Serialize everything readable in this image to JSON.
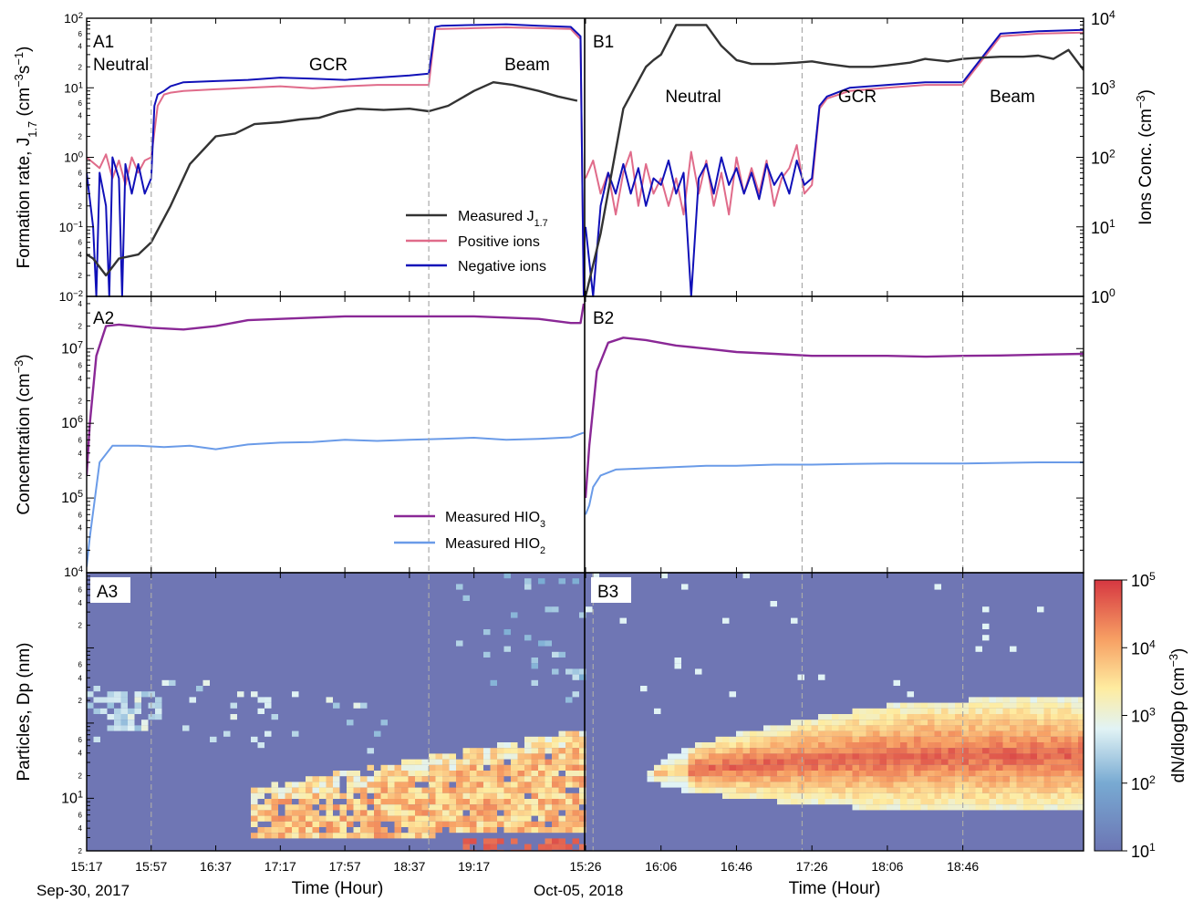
{
  "chart_data": {
    "type": "multi-panel",
    "experiments": [
      {
        "name": "A",
        "date_label": "Sep-30, 2017",
        "time_ticks": [
          "15:17",
          "15:57",
          "16:37",
          "17:17",
          "17:57",
          "18:37",
          "19:17"
        ],
        "stage_labels": [
          "Neutral",
          "GCR",
          "Beam"
        ]
      },
      {
        "name": "B",
        "date_label": "Oct-05, 2018",
        "time_ticks": [
          "15:26",
          "16:06",
          "16:46",
          "17:26",
          "18:06",
          "18:46"
        ],
        "stage_labels": [
          "Neutral",
          "GCR",
          "Beam"
        ]
      }
    ],
    "xlabel": "Time (Hour)",
    "panels": {
      "row1": {
        "ylabel": "Formation  rate, J",
        "ylabel_sub": "1.7",
        "ylabel_unit": " (cm",
        "ylabel_exp1": "−3",
        "ylabel_mid": "s",
        "ylabel_exp2": "−1",
        "ylabel_end": ")",
        "y2label": "Ions Conc. (cm",
        "y2label_exp": "−3",
        "y2label_end": ")",
        "ylim": [
          0.01,
          100
        ],
        "y2lim": [
          1,
          10000
        ],
        "scale": "log",
        "labels": [
          "A1",
          "B1"
        ],
        "legend": [
          {
            "name": "Measured J",
            "sub": "1.7",
            "color": "#333333"
          },
          {
            "name": "Positive ions",
            "color": "#e06b8a"
          },
          {
            "name": "Negative ions",
            "color": "#1010b8"
          }
        ],
        "series_A": {
          "J": {
            "t": [
              0,
              0.1,
              0.3,
              0.5,
              0.8,
              1.0,
              1.3,
              1.6,
              2.0,
              2.3,
              2.6,
              3.0,
              3.3,
              3.6,
              3.9,
              4.2,
              4.6,
              5.0,
              5.3,
              5.6,
              6.0,
              6.3,
              6.6,
              7.0,
              7.3,
              7.6
            ],
            "v": [
              0.04,
              0.035,
              0.02,
              0.035,
              0.04,
              0.06,
              0.2,
              0.8,
              2.0,
              2.2,
              3.0,
              3.2,
              3.5,
              3.7,
              4.5,
              5.0,
              4.8,
              5.0,
              4.6,
              5.5,
              9.0,
              12.0,
              11.0,
              9.0,
              7.5,
              6.5
            ]
          },
          "pos": {
            "t": [
              0,
              0.2,
              0.3,
              0.4,
              0.5,
              0.6,
              0.7,
              0.8,
              0.9,
              1.0,
              1.1,
              1.2,
              1.3,
              1.5,
              2.0,
              2.5,
              3.0,
              3.5,
              4.0,
              4.5,
              5.0,
              5.3,
              5.4,
              5.5,
              6.0,
              6.5,
              7.0,
              7.5,
              7.65,
              7.7
            ],
            "v": [
              1.0,
              0.7,
              1.1,
              0.5,
              0.9,
              0.4,
              1.0,
              0.6,
              0.9,
              1.0,
              5.5,
              8.0,
              8.5,
              9.0,
              9.5,
              10.0,
              10.5,
              9.8,
              10.5,
              11.0,
              11.0,
              11.0,
              70,
              70,
              72,
              74,
              72,
              70,
              50,
              0.01
            ]
          },
          "neg": {
            "t": [
              0,
              0.1,
              0.15,
              0.2,
              0.3,
              0.35,
              0.4,
              0.5,
              0.55,
              0.6,
              0.7,
              0.8,
              0.9,
              1.0,
              1.05,
              1.1,
              1.2,
              1.3,
              1.5,
              2.0,
              2.5,
              3.0,
              3.5,
              4.0,
              4.5,
              5.0,
              5.3,
              5.4,
              5.5,
              6.0,
              6.5,
              7.0,
              7.5,
              7.65,
              7.7
            ],
            "v": [
              0.6,
              0.1,
              0.01,
              0.6,
              0.2,
              0.01,
              1.0,
              0.5,
              0.01,
              0.8,
              0.3,
              0.8,
              0.3,
              0.5,
              5.5,
              8.0,
              9.0,
              10.5,
              12.0,
              12.5,
              13.0,
              14.0,
              13.5,
              13.0,
              14.0,
              15.0,
              16.0,
              75,
              78,
              80,
              82,
              78,
              75,
              55,
              0.01
            ]
          }
        },
        "series_B": {
          "ions": {
            "t": [
              0,
              0.2,
              0.5,
              0.8,
              0.9,
              1.0,
              1.2,
              1.4,
              1.6,
              1.8,
              2.0,
              2.2,
              2.5,
              2.8,
              3.0,
              3.2,
              3.5,
              3.8,
              4.0,
              4.3,
              4.5,
              4.8,
              5.0,
              5.2,
              5.5,
              5.8,
              6.0,
              6.2,
              6.4,
              6.6
            ],
            "v": [
              0.5,
              8,
              500,
              2000,
              2500,
              3000,
              8000,
              8000,
              8000,
              4000,
              2500,
              2200,
              2200,
              2300,
              2400,
              2200,
              2000,
              2000,
              2100,
              2300,
              2600,
              2400,
              2600,
              2700,
              2800,
              2800,
              2900,
              2600,
              3500,
              1800
            ]
          },
          "pos": {
            "t": [
              0,
              0.1,
              0.2,
              0.3,
              0.4,
              0.5,
              0.6,
              0.7,
              0.8,
              0.9,
              1.0,
              1.1,
              1.2,
              1.3,
              1.4,
              1.5,
              1.6,
              1.7,
              1.8,
              1.9,
              2.0,
              2.1,
              2.2,
              2.3,
              2.4,
              2.5,
              2.6,
              2.7,
              2.8,
              2.9,
              3.0,
              3.1,
              3.2,
              3.5,
              4.0,
              4.5,
              5.0,
              5.5,
              6.0,
              6.6
            ],
            "v": [
              0.5,
              0.9,
              0.3,
              0.6,
              0.15,
              0.6,
              1.2,
              0.2,
              0.8,
              0.3,
              0.5,
              0.2,
              0.5,
              0.15,
              1.2,
              0.3,
              0.9,
              0.2,
              0.6,
              0.15,
              1.0,
              0.3,
              0.7,
              0.3,
              0.9,
              0.2,
              0.5,
              0.7,
              1.5,
              0.3,
              0.4,
              5.0,
              7.0,
              9.0,
              10.0,
              11.0,
              11.0,
              55,
              60,
              62
            ]
          },
          "neg": {
            "t": [
              0,
              0.1,
              0.2,
              0.3,
              0.4,
              0.5,
              0.6,
              0.7,
              0.8,
              0.9,
              1.0,
              1.1,
              1.2,
              1.3,
              1.4,
              1.5,
              1.6,
              1.7,
              1.8,
              1.9,
              2.0,
              2.1,
              2.2,
              2.3,
              2.4,
              2.5,
              2.6,
              2.7,
              2.8,
              2.9,
              3.0,
              3.1,
              3.2,
              3.5,
              4.0,
              4.5,
              5.0,
              5.5,
              6.0,
              6.6
            ],
            "v": [
              0.1,
              0.01,
              0.2,
              0.6,
              0.3,
              0.8,
              0.3,
              0.7,
              0.2,
              0.5,
              0.4,
              0.9,
              0.3,
              0.6,
              0.01,
              0.5,
              0.8,
              0.3,
              1.0,
              0.4,
              0.7,
              0.3,
              0.6,
              0.25,
              0.8,
              0.4,
              0.6,
              0.3,
              0.9,
              0.4,
              0.5,
              5.5,
              7.5,
              10.0,
              11.0,
              12.0,
              12.0,
              60,
              65,
              68
            ]
          }
        }
      },
      "row2": {
        "ylabel": "Concentration (cm",
        "ylabel_exp": "−3",
        "ylabel_end": ")",
        "ylim": [
          100000,
          5000000
        ],
        "scale": "log",
        "labels": [
          "A2",
          "B2"
        ],
        "legend": [
          {
            "name": "Measured HIO",
            "sub": "3",
            "color": "#8a2896"
          },
          {
            "name": "Measured HIO",
            "sub": "2",
            "color": "#6a9be8"
          }
        ],
        "series_A": {
          "HIO3": {
            "t": [
              0,
              0.05,
              0.15,
              0.3,
              0.5,
              1.0,
              1.5,
              2.0,
              2.5,
              3.0,
              3.5,
              4.0,
              4.5,
              5.0,
              5.5,
              6.0,
              6.5,
              7.0,
              7.5,
              7.65,
              7.7
            ],
            "v": [
              200000,
              1000000,
              8000000,
              20000000,
              21000000,
              19000000,
              18000000,
              20000000,
              24000000,
              25000000,
              26000000,
              27000000,
              27000000,
              27000000,
              27000000,
              27000000,
              26000000,
              25000000,
              22000000,
              22000000,
              40000000
            ]
          },
          "HIO2": {
            "t": [
              0,
              0.05,
              0.2,
              0.4,
              0.8,
              1.2,
              1.6,
              2.0,
              2.5,
              3.0,
              3.5,
              4.0,
              4.5,
              5.0,
              5.5,
              6.0,
              6.5,
              7.0,
              7.5,
              7.7
            ],
            "v": [
              12000,
              30000,
              300000,
              500000,
              500000,
              480000,
              500000,
              450000,
              520000,
              550000,
              560000,
              600000,
              580000,
              600000,
              620000,
              640000,
              600000,
              620000,
              650000,
              750000
            ]
          }
        },
        "series_B": {
          "HIO3": {
            "t": [
              0,
              0.05,
              0.15,
              0.3,
              0.5,
              0.8,
              1.2,
              1.6,
              2.0,
              2.5,
              3.0,
              3.5,
              4.0,
              4.5,
              5.0,
              5.5,
              6.0,
              6.6
            ],
            "v": [
              100000,
              500000,
              5000000,
              12000000,
              14000000,
              13000000,
              11000000,
              10000000,
              9000000,
              8500000,
              8000000,
              8000000,
              8000000,
              7800000,
              8000000,
              8100000,
              8300000,
              8500000
            ]
          },
          "HIO2": {
            "t": [
              0,
              0.05,
              0.1,
              0.2,
              0.4,
              0.8,
              1.2,
              1.6,
              2.0,
              2.5,
              3.0,
              3.5,
              4.0,
              4.5,
              5.0,
              5.5,
              6.0,
              6.6
            ],
            "v": [
              60000,
              80000,
              140000,
              200000,
              240000,
              250000,
              260000,
              270000,
              270000,
              280000,
              280000,
              285000,
              290000,
              290000,
              290000,
              295000,
              300000,
              300000
            ]
          }
        }
      },
      "row3": {
        "ylabel": "Particles, Dp (nm)",
        "ylim": [
          2,
          100
        ],
        "scale": "log",
        "labels": [
          "A3",
          "B3"
        ],
        "colorbar": {
          "label": "dN/dlogDp (cm",
          "label_exp": "−3",
          "label_end": ")",
          "min": 10,
          "max": 100000,
          "ticks": [
            "10",
            "10",
            "10",
            "10",
            "10"
          ],
          "tick_exps": [
            "1",
            "2",
            "3",
            "4",
            "5"
          ]
        }
      }
    },
    "y_tick_labels": {
      "row1_left": [
        {
          "b": "10",
          "e": "2"
        },
        {
          "b": "10",
          "e": "1"
        },
        {
          "b": "10",
          "e": "0"
        },
        {
          "b": "10",
          "e": "−1"
        },
        {
          "b": "10",
          "e": "−2"
        }
      ],
      "row1_right": [
        {
          "b": "10",
          "e": "4"
        },
        {
          "b": "10",
          "e": "3"
        },
        {
          "b": "10",
          "e": "2"
        },
        {
          "b": "10",
          "e": "1"
        },
        {
          "b": "10",
          "e": "0"
        }
      ],
      "row2_left": [
        {
          "b": "10",
          "e": "7"
        },
        {
          "b": "10",
          "e": "6"
        },
        {
          "b": "10",
          "e": "5"
        }
      ],
      "row3_left": [
        {
          "b": "10",
          "e": "4"
        },
        {
          "b": "10",
          "e": "1"
        }
      ],
      "minor": [
        "6",
        "4",
        "2"
      ]
    }
  }
}
